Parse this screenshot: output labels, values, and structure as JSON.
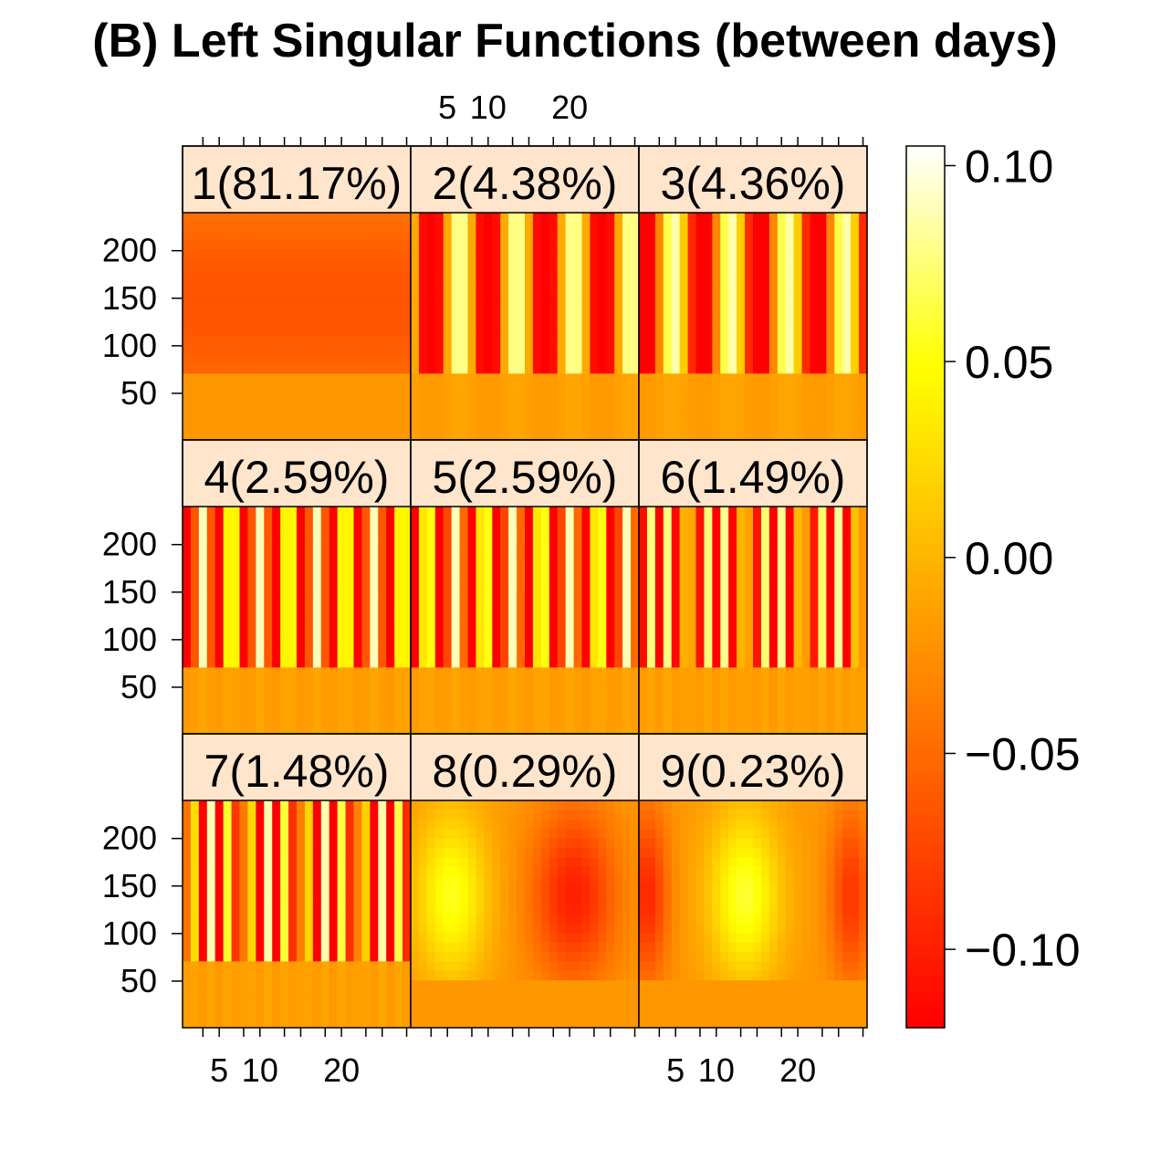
{
  "chart_data": {
    "type": "heatmap",
    "title": "(B) Left Singular Functions (between days)",
    "xlabel": "",
    "ylabel": "",
    "x_ticks": [
      5,
      10,
      20
    ],
    "x_tick_labels": [
      "5",
      "10",
      "20"
    ],
    "x_range": [
      1,
      28
    ],
    "y_ticks": [
      50,
      100,
      150,
      200
    ],
    "y_tick_labels": [
      "50",
      "100",
      "150",
      "200"
    ],
    "y_range": [
      1,
      240
    ],
    "panels": [
      {
        "index": 1,
        "label": "1(81.17%)",
        "pattern": "flat"
      },
      {
        "index": 2,
        "label": "2(4.38%)",
        "pattern": "wave",
        "period": 7,
        "phase": 0
      },
      {
        "index": 3,
        "label": "3(4.36%)",
        "pattern": "wave",
        "period": 7,
        "phase": 1.6
      },
      {
        "index": 4,
        "label": "4(2.59%)",
        "pattern": "wave",
        "period": 3.5,
        "phase": 0
      },
      {
        "index": 5,
        "label": "5(2.59%)",
        "pattern": "wave",
        "period": 3.5,
        "phase": 0.8
      },
      {
        "index": 6,
        "label": "6(1.49%)",
        "pattern": "wave",
        "period": 2.33,
        "phase": 0
      },
      {
        "index": 7,
        "label": "7(1.48%)",
        "pattern": "wave",
        "period": 2.33,
        "phase": 0.6
      },
      {
        "index": 8,
        "label": "8(0.29%)",
        "pattern": "blob",
        "shape": "high-left"
      },
      {
        "index": 9,
        "label": "9(0.23%)",
        "pattern": "blob",
        "shape": "high-center"
      }
    ],
    "colorbar": {
      "range": [
        -0.12,
        0.105
      ],
      "ticks": [
        0.1,
        0.05,
        0.0,
        -0.05,
        -0.1
      ],
      "tick_labels": [
        "0.10",
        "0.05",
        "0.00",
        "−0.05",
        "−0.10"
      ],
      "colors": [
        "#ff0000",
        "#ff7f00",
        "#ffff00",
        "#ffffff"
      ]
    },
    "strip_color": "#ffe5cc"
  }
}
